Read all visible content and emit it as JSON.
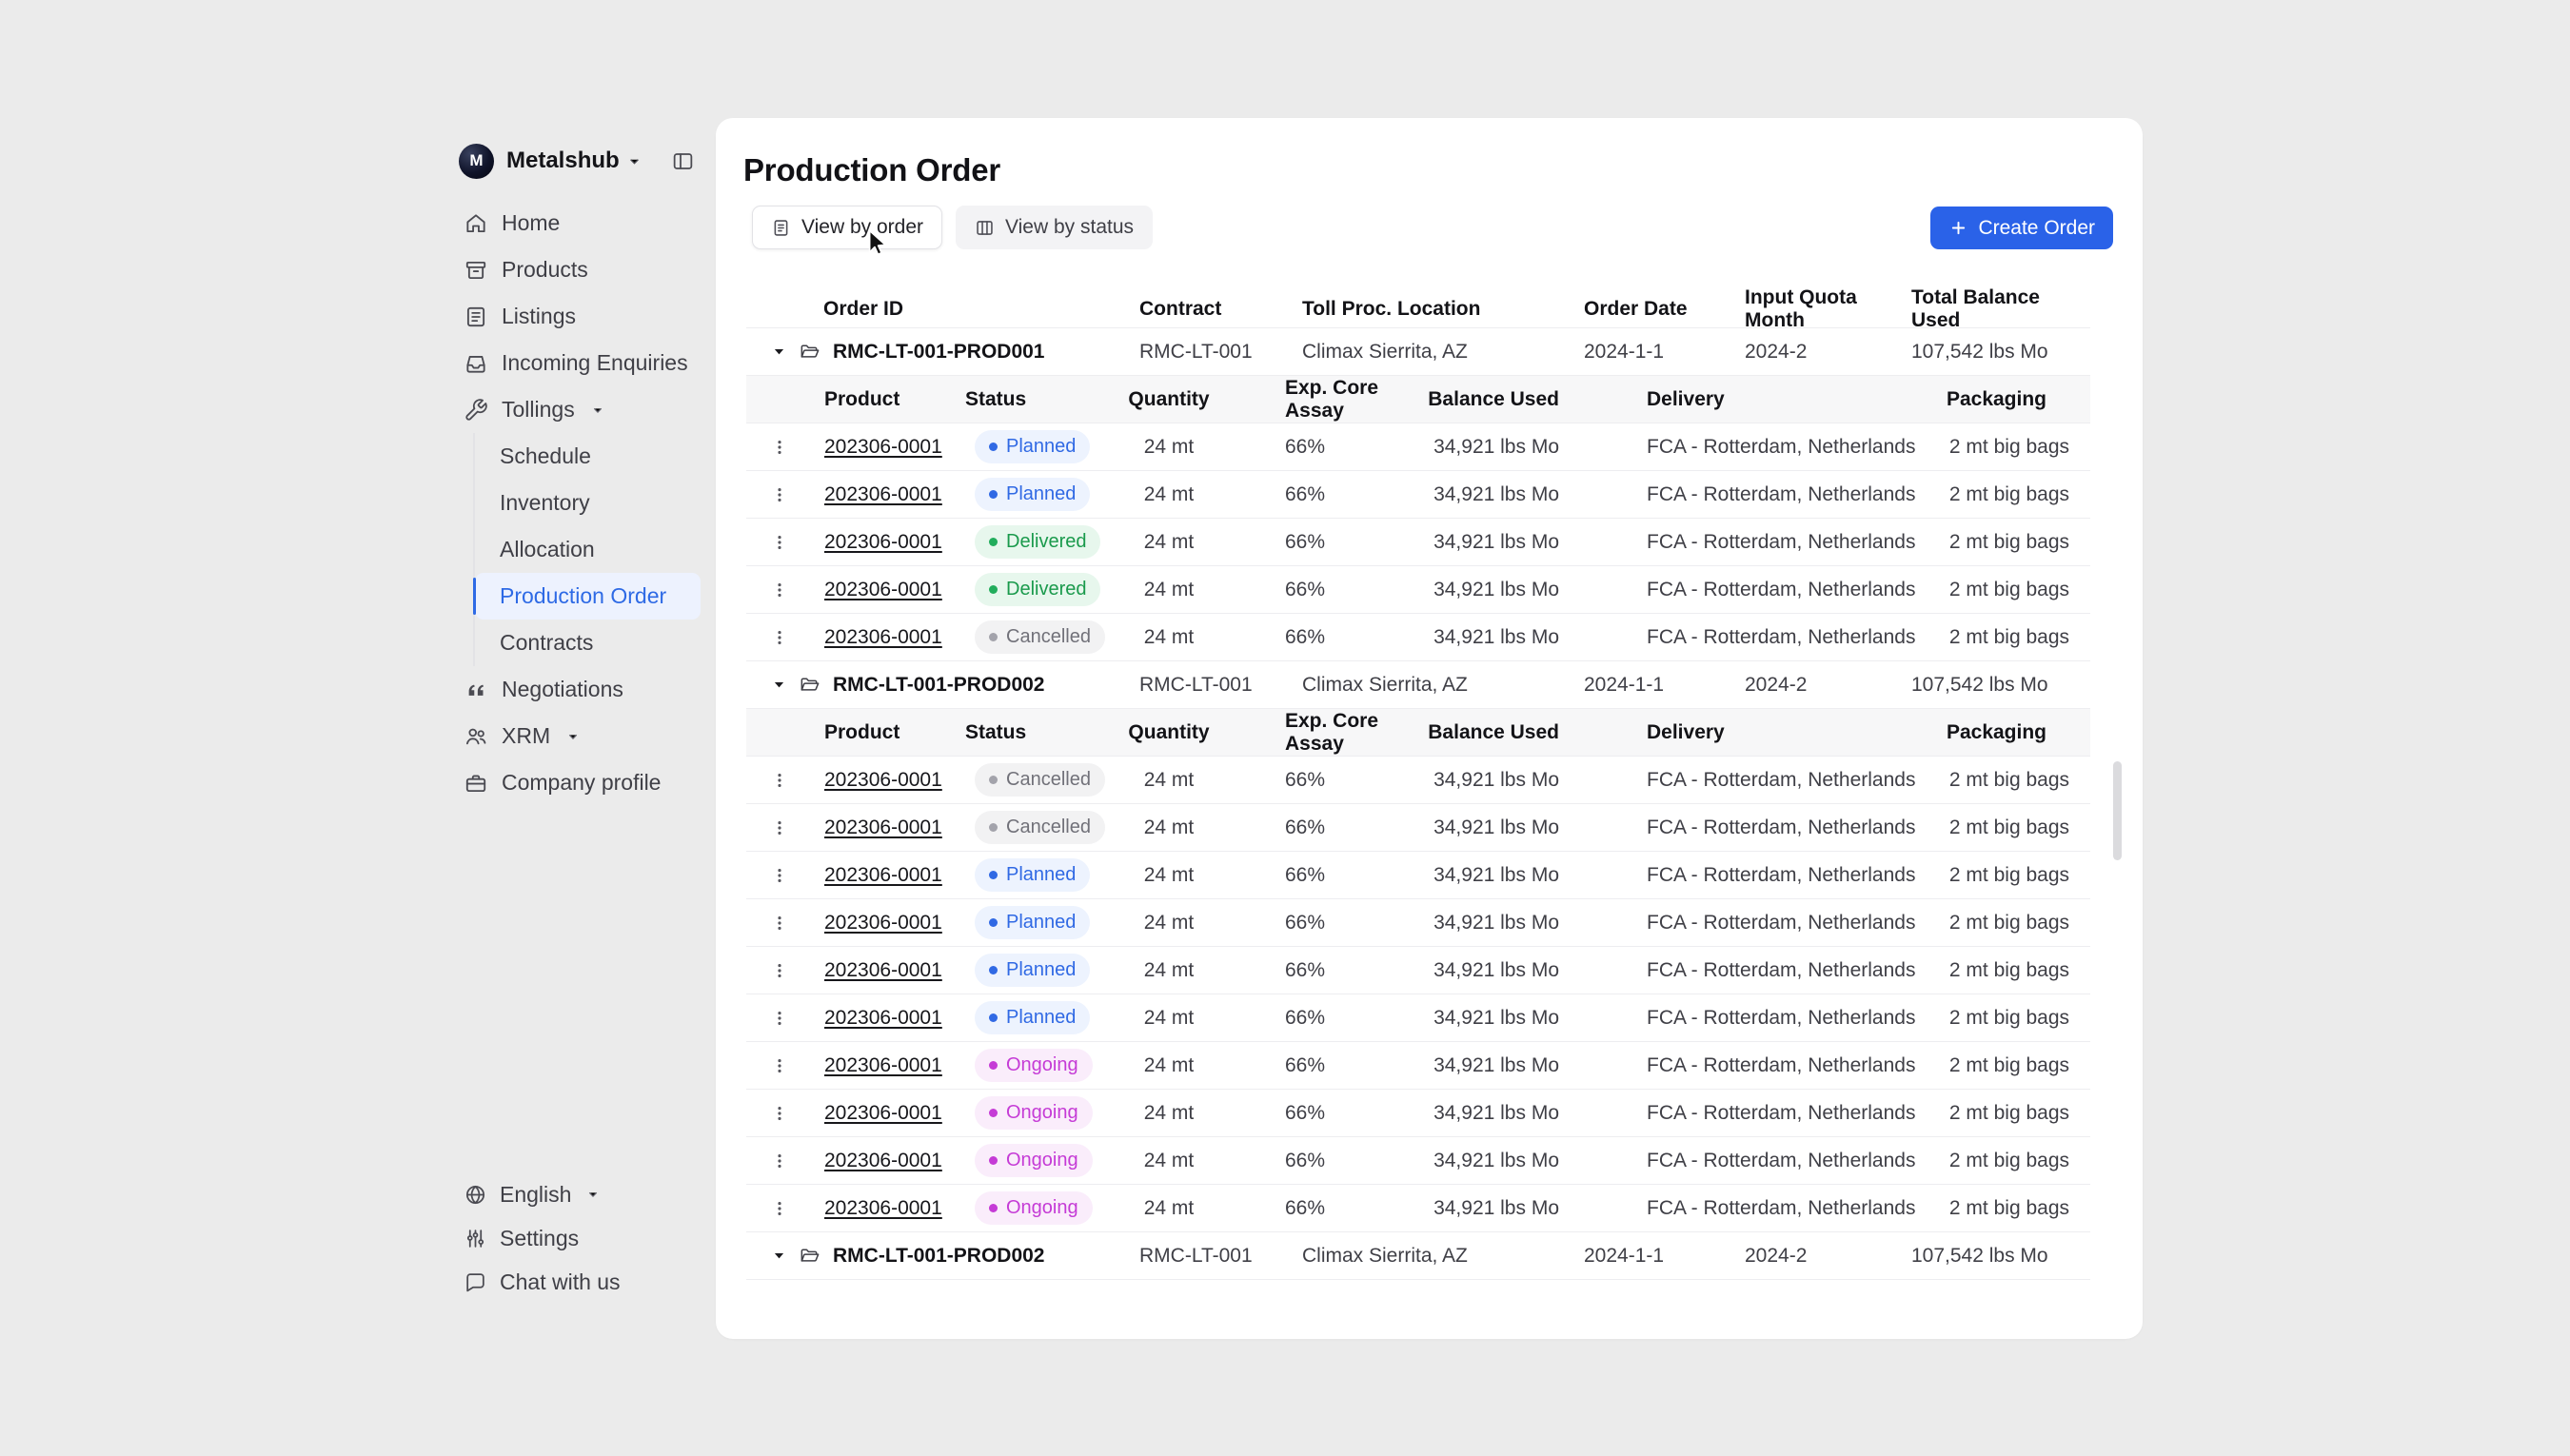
{
  "colors": {
    "accent_blue": "#2A62E8",
    "active_nav_blue": "#2E6AE5",
    "card_bg": "#FFFFFF",
    "page_bg": "#EBEBEB"
  },
  "sidebar": {
    "workspace": {
      "name": "Metalshub",
      "logo_icon": "metalshub-logo",
      "chevron_icon": "chevron-down-icon",
      "panel_icon": "sidebar-toggle-icon"
    },
    "items": [
      {
        "label": "Home",
        "icon": "home-icon"
      },
      {
        "label": "Products",
        "icon": "products-icon"
      },
      {
        "label": "Listings",
        "icon": "listings-icon"
      },
      {
        "label": "Incoming Enquiries",
        "icon": "enquiries-icon"
      },
      {
        "label": "Tollings",
        "icon": "tollings-icon",
        "expanded": true,
        "children": [
          {
            "label": "Schedule",
            "active": false
          },
          {
            "label": "Inventory",
            "active": false
          },
          {
            "label": "Allocation",
            "active": false
          },
          {
            "label": "Production Order",
            "active": true
          },
          {
            "label": "Contracts",
            "active": false
          }
        ]
      },
      {
        "label": "Negotiations",
        "icon": "negotiations-icon"
      },
      {
        "label": "XRM",
        "icon": "xrm-icon",
        "has_chevron": true
      },
      {
        "label": "Company profile",
        "icon": "company-icon"
      }
    ],
    "footer": [
      {
        "label": "English",
        "icon": "globe-icon",
        "has_chevron": true
      },
      {
        "label": "Settings",
        "icon": "settings-icon"
      },
      {
        "label": "Chat with us",
        "icon": "chat-icon"
      }
    ]
  },
  "main": {
    "title": "Production Order",
    "view_tabs": [
      {
        "label": "View by order",
        "icon": "view-order-icon",
        "active": true
      },
      {
        "label": "View by status",
        "icon": "view-status-icon",
        "active": false
      }
    ],
    "create_button": {
      "label": "Create Order",
      "icon": "plus-icon"
    },
    "table": {
      "headers": [
        "Order ID",
        "Contract",
        "Toll Proc. Location",
        "Order Date",
        "Input Quota Month",
        "Total Balance Used"
      ],
      "sub_headers": [
        "Product",
        "Status",
        "Quantity",
        "Exp. Core Assay",
        "Balance Used",
        "Delivery",
        "Packaging"
      ],
      "status_styles": {
        "Planned": {
          "bg": "#EDF3FE",
          "fg": "#3069E4",
          "dot": "#3069E4"
        },
        "Delivered": {
          "bg": "#E7F7ED",
          "fg": "#1A9A4C",
          "dot": "#22AD5C"
        },
        "Cancelled": {
          "bg": "#F2F2F3",
          "fg": "#717179",
          "dot": "#A3A3AB"
        },
        "Ongoing": {
          "bg": "#FAEDFB",
          "fg": "#C53BD6",
          "dot": "#C53BD6"
        }
      },
      "groups": [
        {
          "order_id": "RMC-LT-001-PROD001",
          "contract": "RMC-LT-001",
          "location": "Climax Sierrita, AZ",
          "order_date": "2024-1-1",
          "input_quota_month": "2024-2",
          "total_balance_used": "107,542 lbs Mo",
          "expanded": true,
          "rows": [
            {
              "product": "202306-0001",
              "status": "Planned",
              "quantity": "24 mt",
              "exp_core_assay": "66%",
              "balance_used": "34,921 lbs Mo",
              "delivery": "FCA - Rotterdam, Netherlands",
              "packaging": "2 mt big bags"
            },
            {
              "product": "202306-0001",
              "status": "Planned",
              "quantity": "24 mt",
              "exp_core_assay": "66%",
              "balance_used": "34,921 lbs Mo",
              "delivery": "FCA - Rotterdam, Netherlands",
              "packaging": "2 mt big bags"
            },
            {
              "product": "202306-0001",
              "status": "Delivered",
              "quantity": "24 mt",
              "exp_core_assay": "66%",
              "balance_used": "34,921 lbs Mo",
              "delivery": "FCA - Rotterdam, Netherlands",
              "packaging": "2 mt big bags"
            },
            {
              "product": "202306-0001",
              "status": "Delivered",
              "quantity": "24 mt",
              "exp_core_assay": "66%",
              "balance_used": "34,921 lbs Mo",
              "delivery": "FCA - Rotterdam, Netherlands",
              "packaging": "2 mt big bags"
            },
            {
              "product": "202306-0001",
              "status": "Cancelled",
              "quantity": "24 mt",
              "exp_core_assay": "66%",
              "balance_used": "34,921 lbs Mo",
              "delivery": "FCA - Rotterdam, Netherlands",
              "packaging": "2 mt big bags"
            }
          ]
        },
        {
          "order_id": "RMC-LT-001-PROD002",
          "contract": "RMC-LT-001",
          "location": "Climax Sierrita, AZ",
          "order_date": "2024-1-1",
          "input_quota_month": "2024-2",
          "total_balance_used": "107,542 lbs Mo",
          "expanded": true,
          "rows": [
            {
              "product": "202306-0001",
              "status": "Cancelled",
              "quantity": "24 mt",
              "exp_core_assay": "66%",
              "balance_used": "34,921 lbs Mo",
              "delivery": "FCA - Rotterdam, Netherlands",
              "packaging": "2 mt big bags"
            },
            {
              "product": "202306-0001",
              "status": "Cancelled",
              "quantity": "24 mt",
              "exp_core_assay": "66%",
              "balance_used": "34,921 lbs Mo",
              "delivery": "FCA - Rotterdam, Netherlands",
              "packaging": "2 mt big bags"
            },
            {
              "product": "202306-0001",
              "status": "Planned",
              "quantity": "24 mt",
              "exp_core_assay": "66%",
              "balance_used": "34,921 lbs Mo",
              "delivery": "FCA - Rotterdam, Netherlands",
              "packaging": "2 mt big bags"
            },
            {
              "product": "202306-0001",
              "status": "Planned",
              "quantity": "24 mt",
              "exp_core_assay": "66%",
              "balance_used": "34,921 lbs Mo",
              "delivery": "FCA - Rotterdam, Netherlands",
              "packaging": "2 mt big bags"
            },
            {
              "product": "202306-0001",
              "status": "Planned",
              "quantity": "24 mt",
              "exp_core_assay": "66%",
              "balance_used": "34,921 lbs Mo",
              "delivery": "FCA - Rotterdam, Netherlands",
              "packaging": "2 mt big bags"
            },
            {
              "product": "202306-0001",
              "status": "Planned",
              "quantity": "24 mt",
              "exp_core_assay": "66%",
              "balance_used": "34,921 lbs Mo",
              "delivery": "FCA - Rotterdam, Netherlands",
              "packaging": "2 mt big bags"
            },
            {
              "product": "202306-0001",
              "status": "Ongoing",
              "quantity": "24 mt",
              "exp_core_assay": "66%",
              "balance_used": "34,921 lbs Mo",
              "delivery": "FCA - Rotterdam, Netherlands",
              "packaging": "2 mt big bags"
            },
            {
              "product": "202306-0001",
              "status": "Ongoing",
              "quantity": "24 mt",
              "exp_core_assay": "66%",
              "balance_used": "34,921 lbs Mo",
              "delivery": "FCA - Rotterdam, Netherlands",
              "packaging": "2 mt big bags"
            },
            {
              "product": "202306-0001",
              "status": "Ongoing",
              "quantity": "24 mt",
              "exp_core_assay": "66%",
              "balance_used": "34,921 lbs Mo",
              "delivery": "FCA - Rotterdam, Netherlands",
              "packaging": "2 mt big bags"
            },
            {
              "product": "202306-0001",
              "status": "Ongoing",
              "quantity": "24 mt",
              "exp_core_assay": "66%",
              "balance_used": "34,921 lbs Mo",
              "delivery": "FCA - Rotterdam, Netherlands",
              "packaging": "2 mt big bags"
            }
          ]
        },
        {
          "order_id": "RMC-LT-001-PROD002",
          "contract": "RMC-LT-001",
          "location": "Climax Sierrita, AZ",
          "order_date": "2024-1-1",
          "input_quota_month": "2024-2",
          "total_balance_used": "107,542 lbs Mo",
          "expanded": true,
          "rows": []
        }
      ]
    }
  }
}
